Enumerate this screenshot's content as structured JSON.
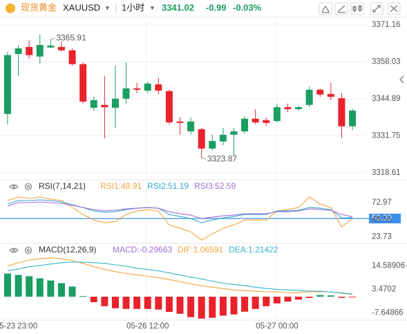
{
  "header": {
    "name": "现货黄金",
    "symbol": "XAUUSD",
    "interval": "1小时",
    "price": "3341.02",
    "change": "-0.99",
    "change_pct": "-0.03%"
  },
  "chart_data": [
    {
      "type": "candlestick",
      "categories": [
        null,
        "5-23 23:00",
        null,
        null,
        null,
        null,
        null,
        null,
        null,
        null,
        null,
        null,
        null,
        "05-26 12:00",
        null,
        null,
        null,
        null,
        null,
        null,
        null,
        null,
        null,
        null,
        null,
        "05-27 00:00",
        null,
        null,
        null,
        null,
        null,
        null,
        null
      ],
      "open": [
        3339.5,
        3360.8,
        3363.3,
        3359.9,
        3363.1,
        3363.3,
        3362.1,
        3357.2,
        3341.7,
        3342.7,
        3341.7,
        3344.9,
        3348.6,
        3347.8,
        3350.0,
        3347.6,
        3336.8,
        3333.3,
        3334.1,
        3327.2,
        3329.7,
        3332.1,
        3333.3,
        3337.8,
        3337.3,
        3337.0,
        3341.9,
        3341.2,
        3342.7,
        3348.1,
        3346.6,
        3345.1,
        3335.1
      ],
      "high": [
        3361.6,
        3364.0,
        3365.8,
        3367.7,
        3365.91,
        3365.3,
        3362.8,
        3357.9,
        3345.6,
        3353.0,
        3356.7,
        3357.9,
        3350.5,
        3351.0,
        3352.3,
        3348.1,
        3338.3,
        3338.3,
        3334.6,
        3332.1,
        3334.6,
        3334.6,
        3338.7,
        3341.2,
        3338.3,
        3343.2,
        3343.2,
        3342.4,
        3349.3,
        3348.6,
        3350.5,
        3346.9,
        3341.4
      ],
      "low": [
        3335.8,
        3353.0,
        3359.1,
        3357.4,
        3362.8,
        3361.6,
        3356.7,
        3343.2,
        3340.7,
        3330.9,
        3334.6,
        3343.2,
        3346.9,
        3346.9,
        3346.4,
        3335.8,
        3332.1,
        3332.1,
        3323.87,
        3326.5,
        3328.4,
        3324.7,
        3332.6,
        3335.8,
        3335.3,
        3336.5,
        3340.2,
        3340.7,
        3341.9,
        3345.6,
        3344.4,
        3330.9,
        3333.8
      ],
      "close": [
        3360.4,
        3362.8,
        3360.4,
        3364.0,
        3363.8,
        3362.1,
        3357.2,
        3343.9,
        3344.4,
        3341.9,
        3344.9,
        3348.6,
        3348.1,
        3350.3,
        3347.8,
        3336.5,
        3336.3,
        3336.8,
        3327.2,
        3329.9,
        3332.1,
        3333.3,
        3337.8,
        3336.5,
        3336.3,
        3341.9,
        3341.2,
        3341.9,
        3348.1,
        3346.4,
        3345.6,
        3335.1,
        3340.7
      ],
      "up_color": "#1b9e62",
      "down_color": "#e8232b",
      "annotations": [
        {
          "index": 4,
          "value": 3365.91
        },
        {
          "index": 18,
          "value": 3323.87
        }
      ],
      "ylim": [
        3316.6,
        3373.1
      ],
      "yticks": [
        3371.16,
        3358.03,
        3344.89,
        3331.75,
        3318.61
      ],
      "grid": true
    },
    {
      "type": "line",
      "title": "RSI(7,14,21)",
      "series": [
        {
          "name": "RSI1:49.91",
          "color": "#f0a33a",
          "values": [
            76.0,
            81.0,
            79.0,
            81.0,
            78.0,
            76.0,
            65.9,
            55.9,
            47.8,
            43.8,
            45.8,
            55.9,
            60.9,
            62.9,
            60.9,
            40.8,
            35.8,
            30.8,
            18.7,
            27.8,
            35.8,
            40.8,
            47.8,
            47.8,
            47.8,
            60.9,
            62.9,
            65.9,
            81.0,
            71.0,
            65.9,
            37.8,
            49.91
          ]
        },
        {
          "name": "RSI2:51.19",
          "color": "#33a7d6",
          "values": [
            71.0,
            76.0,
            76.0,
            77.0,
            76.0,
            74.0,
            70.0,
            65.9,
            60.9,
            58.9,
            59.9,
            62.9,
            64.9,
            65.9,
            64.9,
            55.9,
            52.9,
            49.9,
            43.8,
            47.8,
            50.9,
            52.9,
            55.9,
            55.9,
            55.9,
            60.9,
            60.9,
            61.9,
            65.9,
            64.9,
            62.9,
            50.9,
            51.19
          ]
        },
        {
          "name": "RSI3:52.59",
          "color": "#a36fd6",
          "values": [
            68.0,
            73.0,
            73.0,
            74.0,
            73.0,
            72.0,
            69.0,
            65.9,
            62.9,
            60.9,
            61.9,
            63.9,
            64.9,
            65.9,
            64.9,
            59.9,
            56.9,
            54.9,
            49.9,
            51.9,
            53.9,
            54.9,
            56.9,
            56.9,
            56.9,
            59.9,
            59.9,
            60.9,
            63.9,
            62.9,
            61.9,
            55.9,
            52.59
          ]
        }
      ],
      "hline": {
        "value": 50,
        "color": "#3d8fe8"
      },
      "ylim": [
        14,
        98
      ],
      "yticks": [
        72.97,
        {
          "value": 50,
          "label": "50.00"
        },
        48.55,
        23.73
      ]
    },
    {
      "type": "macd",
      "title": "MACD(12,26,9)",
      "histogram": {
        "name": "MACD:-0.29663",
        "color": "#a36fd6",
        "values": [
          11.0,
          10.3,
          9.7,
          8.7,
          7.7,
          6.4,
          4.8,
          0.3,
          -2.6,
          -4.5,
          -5.5,
          -5.8,
          -5.8,
          -5.8,
          -6.1,
          -7.2,
          -8.1,
          -9.7,
          -10.4,
          -10.0,
          -9.0,
          -8.4,
          -7.1,
          -5.8,
          -4.5,
          -3.2,
          -2.3,
          -1.4,
          -0.6,
          0.8,
          0.6,
          -0.5,
          -0.29663
        ]
      },
      "series": [
        {
          "name": "DIF:1.06591",
          "color": "#f0a33a",
          "values": [
            14.5,
            16.1,
            17.4,
            18.0,
            18.4,
            18.0,
            17.1,
            15.8,
            14.2,
            12.9,
            11.9,
            11.0,
            10.3,
            9.7,
            9.0,
            8.1,
            7.1,
            6.1,
            5.2,
            4.5,
            3.9,
            3.2,
            2.9,
            2.6,
            2.3,
            2.3,
            1.9,
            1.9,
            2.3,
            2.3,
            2.3,
            1.6,
            1.06591
          ]
        },
        {
          "name": "DEA:1.21422",
          "color": "#33b5c9",
          "values": [
            12.2,
            13.2,
            14.2,
            14.8,
            15.5,
            16.1,
            16.4,
            16.4,
            16.1,
            15.8,
            15.1,
            14.5,
            13.5,
            12.9,
            12.2,
            11.3,
            10.3,
            9.3,
            8.4,
            7.4,
            6.4,
            5.8,
            5.2,
            4.5,
            3.9,
            3.5,
            3.2,
            2.9,
            2.6,
            2.6,
            2.2,
            1.8,
            1.21422
          ]
        }
      ],
      "up_color": "#1b9e62",
      "down_color": "#e8232b",
      "ylim": [
        -10.8,
        18.7
      ],
      "yticks": [
        14.58906,
        3.4702,
        -7.64866
      ]
    }
  ]
}
